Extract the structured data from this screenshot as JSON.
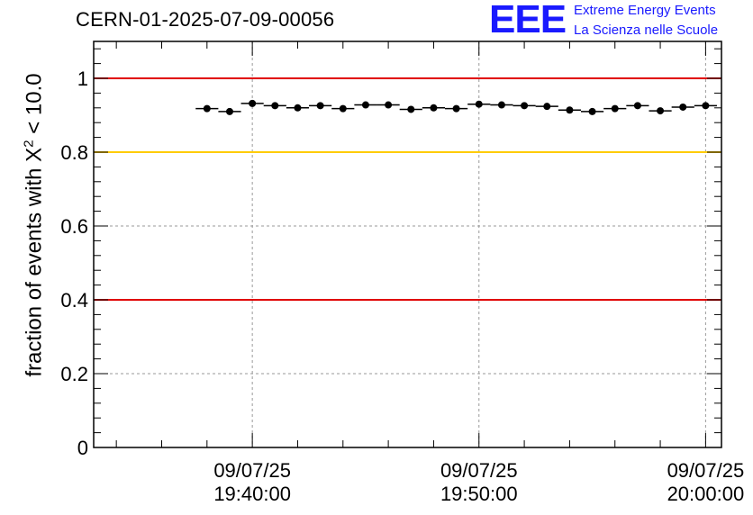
{
  "header": {
    "title": "CERN-01-2025-07-09-00056"
  },
  "logo": {
    "mark": "EEE",
    "line1": "Extreme Energy Events",
    "line2": "La Scienza nelle Scuole"
  },
  "chart_data": {
    "type": "scatter",
    "title": "CERN-01-2025-07-09-00056",
    "ylabel_prefix": "fraction of events with ",
    "ylabel_symbol": "X",
    "ylabel_sup": "2",
    "ylabel_suffix": " < 10.0",
    "xlabel": "",
    "ylim": [
      0,
      1.1
    ],
    "xlim_minutes": [
      -7.0,
      20.7
    ],
    "yticks": [
      {
        "value": 0,
        "label": "0"
      },
      {
        "value": 0.2,
        "label": "0.2"
      },
      {
        "value": 0.4,
        "label": "0.4"
      },
      {
        "value": 0.6,
        "label": "0.6"
      },
      {
        "value": 0.8,
        "label": "0.8"
      },
      {
        "value": 1,
        "label": "1"
      }
    ],
    "xticks": [
      {
        "minutes": 0,
        "date": "09/07/25",
        "time": "19:40:00"
      },
      {
        "minutes": 10,
        "date": "09/07/25",
        "time": "19:50:00"
      },
      {
        "minutes": 20,
        "date": "09/07/25",
        "time": "20:00:00"
      }
    ],
    "grid": true,
    "reference_lines": [
      {
        "y": 1.0,
        "color": "#e00000"
      },
      {
        "y": 0.8,
        "color": "#ffcc00"
      },
      {
        "y": 0.4,
        "color": "#e00000"
      }
    ],
    "bin_width_minutes": 1,
    "x_minutes": [
      -2.0,
      -1.0,
      0.0,
      1.0,
      2.0,
      3.0,
      4.0,
      5.0,
      6.0,
      7.0,
      8.0,
      9.0,
      10.0,
      11.0,
      12.0,
      13.0,
      14.0,
      15.0,
      16.0,
      17.0,
      18.0,
      19.0,
      20.0
    ],
    "values": [
      0.918,
      0.91,
      0.932,
      0.926,
      0.92,
      0.926,
      0.918,
      0.928,
      0.928,
      0.916,
      0.92,
      0.918,
      0.93,
      0.928,
      0.926,
      0.924,
      0.914,
      0.91,
      0.918,
      0.926,
      0.912,
      0.922,
      0.926
    ]
  }
}
